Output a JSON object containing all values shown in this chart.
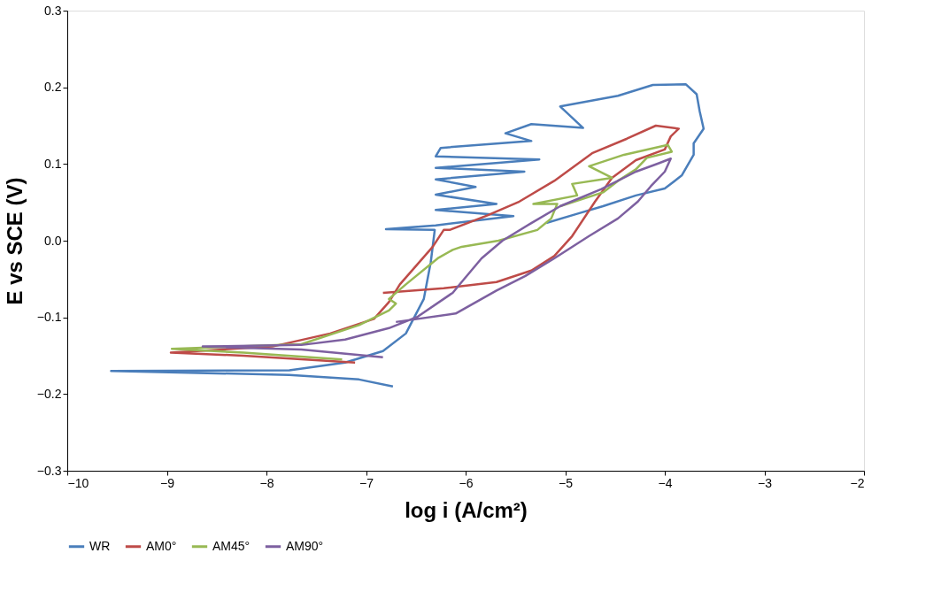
{
  "chart_data": {
    "type": "line",
    "xlabel": "log i (A/cm²)",
    "ylabel": "E vs SCE (V)",
    "xlim": [
      -10,
      -2
    ],
    "xticks": [
      -10,
      -9,
      -8,
      -7,
      -6,
      -5,
      -4,
      -3,
      -2
    ],
    "ylim": [
      -0.3,
      0.3
    ],
    "yticks": [
      -0.3,
      -0.2,
      -0.1,
      {
        "value": 0,
        "label": "0.0"
      },
      0.1,
      0.2,
      0.3
    ],
    "grid": false,
    "legend": "bottom",
    "marker": "none",
    "line_style": "solid",
    "series": [
      {
        "name": "WR",
        "color": "#4a7ebb",
        "x": [
          -6.73,
          -7.07,
          -7.77,
          -9.56,
          -7.77,
          -7.21,
          -6.83,
          -6.6,
          -6.42,
          -6.35,
          -6.31,
          -6.8,
          -6.3,
          -5.52,
          -6.3,
          -5.69,
          -6.3,
          -5.9,
          -6.3,
          -5.41,
          -6.3,
          -5.26,
          -6.3,
          -6.25,
          -5.34,
          -5.6,
          -5.34,
          -4.82,
          -5.05,
          -4.47,
          -4.12,
          -3.79,
          -3.68,
          -3.65,
          -3.61,
          -3.71,
          -3.71,
          -3.83,
          -4.0,
          -4.29,
          -4.62,
          -4.88,
          -5.19
        ],
        "values": [
          -0.19,
          -0.181,
          -0.175,
          -0.17,
          -0.169,
          -0.159,
          -0.144,
          -0.121,
          -0.076,
          -0.028,
          0.014,
          0.015,
          0.02,
          0.032,
          0.04,
          0.048,
          0.06,
          0.07,
          0.08,
          0.09,
          0.095,
          0.106,
          0.11,
          0.121,
          0.13,
          0.14,
          0.152,
          0.147,
          0.175,
          0.189,
          0.203,
          0.204,
          0.191,
          0.169,
          0.146,
          0.127,
          0.112,
          0.085,
          0.068,
          0.059,
          0.045,
          0.035,
          0.023
        ]
      },
      {
        "name": "AM0°",
        "color": "#be4b48",
        "x": [
          -7.11,
          -8.23,
          -8.96,
          -7.94,
          -7.36,
          -6.92,
          -6.77,
          -6.66,
          -6.33,
          -6.22,
          -6.16,
          -5.78,
          -5.46,
          -5.11,
          -4.73,
          -4.38,
          -4.09,
          -3.86,
          -3.94,
          -4.0,
          -4.29,
          -4.53,
          -4.7,
          -4.93,
          -5.11,
          -5.34,
          -5.69,
          -6.22,
          -6.83
        ],
        "values": [
          -0.159,
          -0.15,
          -0.146,
          -0.138,
          -0.121,
          -0.102,
          -0.08,
          -0.057,
          -0.008,
          0.014,
          0.014,
          0.033,
          0.051,
          0.078,
          0.114,
          0.133,
          0.15,
          0.146,
          0.136,
          0.119,
          0.105,
          0.082,
          0.051,
          0.006,
          -0.02,
          -0.039,
          -0.054,
          -0.062,
          -0.068
        ]
      },
      {
        "name": "AM45°",
        "color": "#98b954",
        "x": [
          -7.24,
          -8.23,
          -8.95,
          -7.65,
          -7.07,
          -6.77,
          -6.7,
          -6.77,
          -6.6,
          -6.28,
          -6.13,
          -6.04,
          -5.67,
          -5.28,
          -5.14,
          -5.08,
          -5.32,
          -4.88,
          -4.93,
          -4.53,
          -4.76,
          -4.41,
          -3.97,
          -3.93,
          -4.18,
          -4.29,
          -4.47,
          -4.62,
          -5.05
        ],
        "values": [
          -0.155,
          -0.146,
          -0.141,
          -0.135,
          -0.11,
          -0.091,
          -0.082,
          -0.076,
          -0.057,
          -0.023,
          -0.012,
          -0.008,
          0.0,
          0.014,
          0.029,
          0.048,
          0.048,
          0.059,
          0.074,
          0.082,
          0.097,
          0.112,
          0.125,
          0.116,
          0.108,
          0.093,
          0.078,
          0.063,
          0.045
        ]
      },
      {
        "name": "AM90°",
        "color": "#7d60a0",
        "x": [
          -6.83,
          -7.65,
          -8.64,
          -7.65,
          -7.21,
          -6.77,
          -6.48,
          -6.13,
          -6.04,
          -5.84,
          -5.63,
          -5.34,
          -5.05,
          -4.64,
          -4.29,
          -4.06,
          -3.94,
          -4.0,
          -4.14,
          -4.27,
          -4.47,
          -4.76,
          -5.11,
          -5.4,
          -5.69,
          -6.1,
          -6.7
        ],
        "values": [
          -0.152,
          -0.142,
          -0.138,
          -0.136,
          -0.129,
          -0.114,
          -0.099,
          -0.068,
          -0.054,
          -0.023,
          0.0,
          0.023,
          0.045,
          0.067,
          0.09,
          0.101,
          0.107,
          0.09,
          0.071,
          0.051,
          0.029,
          0.006,
          -0.023,
          -0.046,
          -0.065,
          -0.095,
          -0.106
        ]
      }
    ]
  }
}
